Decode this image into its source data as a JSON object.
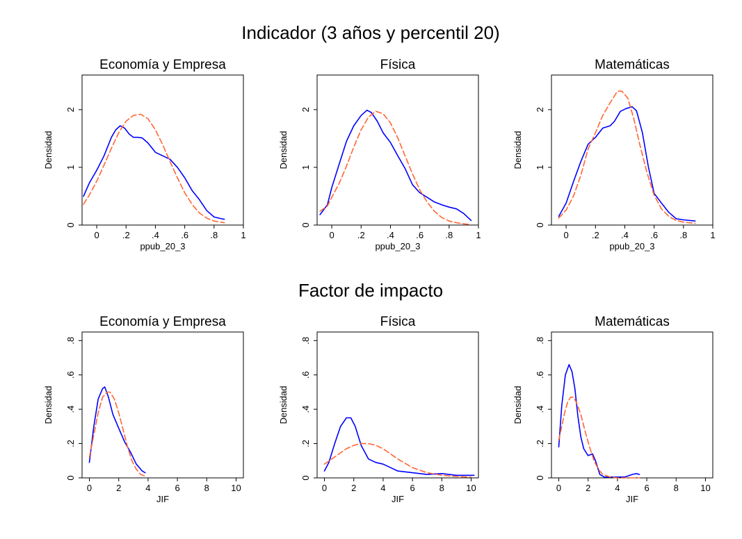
{
  "page": {
    "top_title": "Indicador (3 años y percentil 20)",
    "bottom_title": "Factor de impacto"
  },
  "colors": {
    "kdensity": "#0000ff",
    "normal": "#ff6633",
    "frame": "#000000"
  },
  "chart_data": [
    {
      "type": "line",
      "title": "Economía y Empresa",
      "xlabel": "ppub_20_3",
      "ylabel": "Densidad",
      "xlim": [
        -0.1,
        1.0
      ],
      "ylim": [
        0,
        2.6
      ],
      "xticks": [
        0,
        0.2,
        0.4,
        0.6,
        0.8,
        1
      ],
      "xtick_labels": [
        "0",
        ".2",
        ".4",
        ".6",
        ".8",
        "1"
      ],
      "yticks": [
        0,
        1,
        2
      ],
      "ytick_labels": [
        "0",
        "1",
        "2"
      ],
      "series": [
        {
          "style": "solid",
          "color": "#0000ff",
          "x": [
            -0.09,
            -0.05,
            0.0,
            0.05,
            0.1,
            0.13,
            0.16,
            0.19,
            0.22,
            0.25,
            0.28,
            0.31,
            0.35,
            0.4,
            0.45,
            0.5,
            0.55,
            0.6,
            0.65,
            0.7,
            0.75,
            0.8,
            0.85,
            0.87
          ],
          "y": [
            0.5,
            0.73,
            0.95,
            1.2,
            1.52,
            1.65,
            1.72,
            1.68,
            1.58,
            1.52,
            1.52,
            1.51,
            1.42,
            1.26,
            1.2,
            1.14,
            1.0,
            0.82,
            0.6,
            0.44,
            0.25,
            0.14,
            0.11,
            0.1
          ]
        },
        {
          "style": "dashed",
          "color": "#ff6633",
          "x": [
            -0.09,
            -0.05,
            0.0,
            0.05,
            0.1,
            0.15,
            0.2,
            0.25,
            0.3,
            0.35,
            0.4,
            0.45,
            0.5,
            0.55,
            0.6,
            0.65,
            0.7,
            0.75,
            0.8,
            0.87
          ],
          "y": [
            0.36,
            0.52,
            0.76,
            1.04,
            1.33,
            1.6,
            1.8,
            1.9,
            1.92,
            1.84,
            1.65,
            1.39,
            1.1,
            0.82,
            0.56,
            0.36,
            0.21,
            0.12,
            0.07,
            0.04
          ]
        }
      ]
    },
    {
      "type": "line",
      "title": "Física",
      "xlabel": "ppub_20_3",
      "ylabel": "Densidad",
      "xlim": [
        -0.1,
        1.0
      ],
      "ylim": [
        0,
        2.6
      ],
      "xticks": [
        0,
        0.2,
        0.4,
        0.6,
        0.8,
        1
      ],
      "xtick_labels": [
        "0",
        ".2",
        ".4",
        ".6",
        ".8",
        "1"
      ],
      "yticks": [
        0,
        1,
        2
      ],
      "ytick_labels": [
        "0",
        "1",
        "2"
      ],
      "series": [
        {
          "style": "solid",
          "color": "#0000ff",
          "x": [
            -0.08,
            -0.03,
            0.0,
            0.05,
            0.1,
            0.15,
            0.2,
            0.24,
            0.27,
            0.31,
            0.35,
            0.4,
            0.45,
            0.5,
            0.55,
            0.6,
            0.65,
            0.7,
            0.75,
            0.8,
            0.85,
            0.9,
            0.95
          ],
          "y": [
            0.18,
            0.35,
            0.65,
            1.05,
            1.45,
            1.72,
            1.9,
            1.99,
            1.95,
            1.8,
            1.6,
            1.43,
            1.2,
            0.98,
            0.7,
            0.56,
            0.48,
            0.4,
            0.35,
            0.31,
            0.28,
            0.2,
            0.08
          ]
        },
        {
          "style": "dashed",
          "color": "#ff6633",
          "x": [
            -0.08,
            -0.03,
            0.0,
            0.05,
            0.1,
            0.15,
            0.2,
            0.25,
            0.3,
            0.35,
            0.4,
            0.45,
            0.5,
            0.55,
            0.6,
            0.65,
            0.7,
            0.75,
            0.8,
            0.85,
            0.9,
            0.95
          ],
          "y": [
            0.24,
            0.33,
            0.48,
            0.72,
            1.02,
            1.35,
            1.65,
            1.87,
            1.97,
            1.93,
            1.77,
            1.51,
            1.2,
            0.89,
            0.61,
            0.4,
            0.24,
            0.13,
            0.07,
            0.04,
            0.02,
            0.01
          ]
        }
      ]
    },
    {
      "type": "line",
      "title": "Matemáticas",
      "xlabel": "ppub_20_3",
      "ylabel": "Densidad",
      "xlim": [
        -0.1,
        1.0
      ],
      "ylim": [
        0,
        2.6
      ],
      "xticks": [
        0,
        0.2,
        0.4,
        0.6,
        0.8,
        1
      ],
      "xtick_labels": [
        "0",
        ".2",
        ".4",
        ".6",
        ".8",
        "1"
      ],
      "yticks": [
        0,
        1,
        2
      ],
      "ytick_labels": [
        "0",
        "1",
        "2"
      ],
      "series": [
        {
          "style": "solid",
          "color": "#0000ff",
          "x": [
            -0.05,
            0.0,
            0.05,
            0.1,
            0.15,
            0.2,
            0.25,
            0.3,
            0.33,
            0.37,
            0.41,
            0.45,
            0.48,
            0.52,
            0.56,
            0.6,
            0.65,
            0.7,
            0.75,
            0.8,
            0.88
          ],
          "y": [
            0.15,
            0.38,
            0.75,
            1.1,
            1.4,
            1.52,
            1.68,
            1.72,
            1.8,
            1.97,
            2.02,
            2.05,
            1.98,
            1.6,
            1.02,
            0.55,
            0.38,
            0.22,
            0.11,
            0.09,
            0.07
          ]
        },
        {
          "style": "dashed",
          "color": "#ff6633",
          "x": [
            -0.05,
            0.0,
            0.05,
            0.1,
            0.15,
            0.2,
            0.25,
            0.3,
            0.35,
            0.38,
            0.42,
            0.46,
            0.5,
            0.55,
            0.6,
            0.65,
            0.7,
            0.75,
            0.8,
            0.88
          ],
          "y": [
            0.12,
            0.26,
            0.5,
            0.86,
            1.32,
            1.6,
            1.9,
            2.12,
            2.32,
            2.32,
            2.2,
            1.86,
            1.42,
            0.92,
            0.52,
            0.28,
            0.15,
            0.08,
            0.05,
            0.03
          ]
        }
      ]
    },
    {
      "type": "line",
      "title": "Economía y Empresa",
      "xlabel": "JIF",
      "ylabel": "Densidad",
      "xlim": [
        -0.5,
        10.5
      ],
      "ylim": [
        0,
        0.85
      ],
      "xticks": [
        0,
        2,
        4,
        6,
        8,
        10
      ],
      "xtick_labels": [
        "0",
        "2",
        "4",
        "6",
        "8",
        "10"
      ],
      "yticks": [
        0,
        0.2,
        0.4,
        0.6,
        0.8
      ],
      "ytick_labels": [
        "0",
        ".2",
        ".4",
        ".6",
        ".8"
      ],
      "series": [
        {
          "style": "solid",
          "color": "#0000ff",
          "x": [
            0.0,
            0.3,
            0.6,
            0.9,
            1.05,
            1.3,
            1.6,
            2.0,
            2.4,
            2.8,
            3.2,
            3.6,
            3.8
          ],
          "y": [
            0.09,
            0.3,
            0.46,
            0.52,
            0.53,
            0.47,
            0.37,
            0.29,
            0.21,
            0.15,
            0.08,
            0.04,
            0.03
          ]
        },
        {
          "style": "dashed",
          "color": "#ff6633",
          "x": [
            0.0,
            0.3,
            0.6,
            0.9,
            1.2,
            1.4,
            1.7,
            2.0,
            2.3,
            2.6,
            2.9,
            3.2,
            3.5,
            3.8
          ],
          "y": [
            0.12,
            0.25,
            0.38,
            0.47,
            0.5,
            0.5,
            0.46,
            0.38,
            0.28,
            0.18,
            0.1,
            0.05,
            0.02,
            0.01
          ]
        }
      ]
    },
    {
      "type": "line",
      "title": "Física",
      "xlabel": "JIF",
      "ylabel": "Densidad",
      "xlim": [
        -0.5,
        10.5
      ],
      "ylim": [
        0,
        0.85
      ],
      "xticks": [
        0,
        2,
        4,
        6,
        8,
        10
      ],
      "xtick_labels": [
        "0",
        "2",
        "4",
        "6",
        "8",
        "10"
      ],
      "yticks": [
        0,
        0.2,
        0.4,
        0.6,
        0.8
      ],
      "ytick_labels": [
        "0",
        ".2",
        ".4",
        ".6",
        ".8"
      ],
      "series": [
        {
          "style": "solid",
          "color": "#0000ff",
          "x": [
            0.0,
            0.3,
            0.7,
            1.1,
            1.5,
            1.8,
            2.1,
            2.5,
            3.0,
            3.5,
            4.0,
            4.5,
            5.0,
            6.0,
            7.0,
            8.0,
            9.0,
            10.0,
            10.2
          ],
          "y": [
            0.04,
            0.09,
            0.2,
            0.3,
            0.35,
            0.35,
            0.3,
            0.19,
            0.11,
            0.09,
            0.08,
            0.06,
            0.04,
            0.03,
            0.02,
            0.025,
            0.015,
            0.015,
            0.015
          ]
        },
        {
          "style": "dashed",
          "color": "#ff6633",
          "x": [
            0.0,
            0.5,
            1.0,
            1.5,
            2.0,
            2.5,
            3.0,
            3.5,
            4.0,
            4.5,
            5.0,
            6.0,
            7.0,
            8.0,
            9.0,
            10.0
          ],
          "y": [
            0.08,
            0.11,
            0.14,
            0.17,
            0.19,
            0.2,
            0.2,
            0.19,
            0.17,
            0.14,
            0.11,
            0.06,
            0.03,
            0.015,
            0.008,
            0.004
          ]
        }
      ]
    },
    {
      "type": "line",
      "title": "Matemáticas",
      "xlabel": "JIF",
      "ylabel": "Densidad",
      "xlim": [
        -0.5,
        10.5
      ],
      "ylim": [
        0,
        0.85
      ],
      "xticks": [
        0,
        2,
        4,
        6,
        8,
        10
      ],
      "xtick_labels": [
        "0",
        "2",
        "4",
        "6",
        "8",
        "10"
      ],
      "yticks": [
        0,
        0.2,
        0.4,
        0.6,
        0.8
      ],
      "ytick_labels": [
        "0",
        ".2",
        ".4",
        ".6",
        ".8"
      ],
      "series": [
        {
          "style": "solid",
          "color": "#0000ff",
          "x": [
            0.0,
            0.2,
            0.45,
            0.7,
            0.9,
            1.1,
            1.3,
            1.5,
            1.7,
            2.0,
            2.3,
            2.5,
            2.8,
            3.1,
            3.5,
            4.0,
            4.5,
            5.0,
            5.3,
            5.5
          ],
          "y": [
            0.18,
            0.42,
            0.6,
            0.66,
            0.62,
            0.52,
            0.36,
            0.24,
            0.17,
            0.13,
            0.14,
            0.1,
            0.02,
            0.005,
            0.005,
            0.005,
            0.005,
            0.02,
            0.025,
            0.02
          ]
        },
        {
          "style": "dashed",
          "color": "#ff6633",
          "x": [
            0.0,
            0.2,
            0.4,
            0.6,
            0.8,
            1.0,
            1.2,
            1.5,
            1.8,
            2.1,
            2.4,
            2.7,
            3.0,
            3.5,
            4.0,
            5.0,
            5.5
          ],
          "y": [
            0.22,
            0.3,
            0.38,
            0.44,
            0.47,
            0.47,
            0.44,
            0.37,
            0.27,
            0.18,
            0.1,
            0.05,
            0.02,
            0.005,
            0.0,
            0.0,
            0.0
          ]
        }
      ]
    }
  ]
}
